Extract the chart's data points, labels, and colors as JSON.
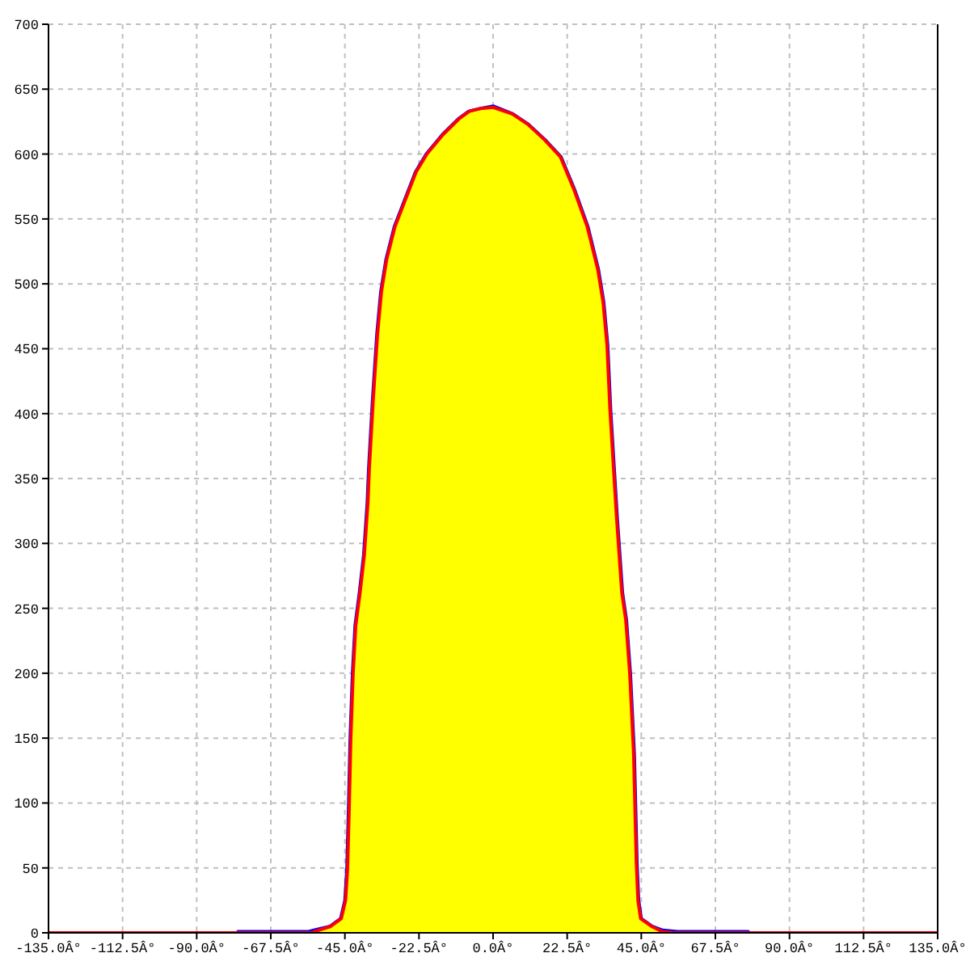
{
  "chart_data": {
    "type": "line",
    "xlim": [
      -135,
      135
    ],
    "xticks": [
      {
        "value": -135,
        "label": "-135.0Â°"
      },
      {
        "value": -112.5,
        "label": "-112.5Â°"
      },
      {
        "value": -90,
        "label": "-90.0Â°"
      },
      {
        "value": -67.5,
        "label": "-67.5Â°"
      },
      {
        "value": -45,
        "label": "-45.0Â°"
      },
      {
        "value": -22.5,
        "label": "-22.5Â°"
      },
      {
        "value": 0,
        "label": "0.0Â°"
      },
      {
        "value": 22.5,
        "label": "22.5Â°"
      },
      {
        "value": 45,
        "label": "45.0Â°"
      },
      {
        "value": 67.5,
        "label": "67.5Â°"
      },
      {
        "value": 90,
        "label": "90.0Â°"
      },
      {
        "value": 112.5,
        "label": "112.5Â°"
      },
      {
        "value": 135,
        "label": "135.0Â°"
      }
    ],
    "ylim": [
      0,
      700
    ],
    "yticks": [
      0,
      50,
      100,
      150,
      200,
      250,
      300,
      350,
      400,
      450,
      500,
      550,
      600,
      650,
      700
    ],
    "grid": true,
    "series": [
      {
        "type": "area",
        "color": "#ffff00",
        "x": [
          -55,
          -54.2,
          -49.3,
          -46.1,
          -44.8,
          -44.2,
          -43.7,
          -43.2,
          -42.5,
          -41.7,
          -40.4,
          -39.1,
          -38.0,
          -37.6,
          -36.4,
          -35.1,
          -33.9,
          -32.3,
          -29.8,
          -26.6,
          -23.4,
          -20.1,
          -15.2,
          -10.4,
          -7.2,
          -3.9,
          0,
          5.8,
          10.5,
          15.6,
          20.4,
          24.5,
          28.6,
          31.8,
          33.4,
          34.6,
          35.5,
          36.7,
          37.5,
          39.1,
          40.3,
          41.5,
          42.7,
          43.5,
          44.0,
          44.8,
          48.1,
          51.3,
          55
        ],
        "values": [
          0,
          1,
          5,
          11,
          25,
          49,
          96,
          150,
          200,
          237,
          262,
          291,
          332,
          357,
          411,
          461,
          494,
          519,
          544,
          565,
          586,
          600,
          615,
          627,
          633,
          635,
          636,
          631,
          623,
          611,
          598,
          573,
          544,
          511,
          486,
          453,
          403,
          353,
          320,
          262,
          241,
          200,
          137,
          54,
          25,
          11,
          5,
          1,
          0
        ]
      },
      {
        "color": "#0000ff",
        "x": [
          -77.5,
          -56,
          -54.4,
          -49.5,
          -46.3,
          -45.0,
          -44.4,
          -43.9,
          -43.4,
          -42.7,
          -41.9,
          -40.6,
          -39.3,
          -38.2,
          -37.8,
          -36.6,
          -35.3,
          -34.1,
          -32.5,
          -30.0,
          -26.8,
          -23.6,
          -20.3,
          -15.4,
          -10.6,
          -7.4,
          -4.1,
          0,
          6.0,
          10.7,
          15.8,
          20.6,
          24.7,
          28.8,
          32.0,
          33.6,
          34.8,
          35.7,
          36.9,
          37.7,
          39.3,
          40.5,
          41.7,
          42.9,
          43.7,
          44.2,
          45.0,
          48.3,
          51.5,
          56,
          77.5
        ],
        "values": [
          1,
          1,
          2,
          5,
          11,
          25,
          49,
          96,
          150,
          200,
          237,
          262,
          291,
          332,
          357,
          411,
          461,
          494,
          519,
          544,
          565,
          586,
          600,
          615,
          627,
          633,
          635,
          637,
          631,
          623,
          611,
          598,
          573,
          544,
          511,
          486,
          453,
          403,
          353,
          320,
          262,
          241,
          200,
          137,
          54,
          25,
          11,
          5,
          2,
          1,
          1
        ]
      },
      {
        "color": "#ff0000",
        "x": [
          -135,
          -55,
          -54.2,
          -49.3,
          -46.1,
          -44.8,
          -44.2,
          -43.7,
          -43.2,
          -42.5,
          -41.7,
          -40.4,
          -39.1,
          -38.0,
          -37.6,
          -36.4,
          -35.1,
          -33.9,
          -32.3,
          -29.8,
          -26.6,
          -23.4,
          -20.1,
          -15.2,
          -10.4,
          -7.2,
          -3.9,
          0,
          5.8,
          10.5,
          15.6,
          20.4,
          24.5,
          28.6,
          31.8,
          33.4,
          34.6,
          35.5,
          36.7,
          37.5,
          39.1,
          40.3,
          41.5,
          42.7,
          43.5,
          44.0,
          44.8,
          48.1,
          51.3,
          55,
          135
        ],
        "values": [
          0,
          0,
          1,
          5,
          11,
          25,
          49,
          96,
          150,
          200,
          237,
          262,
          291,
          332,
          357,
          411,
          461,
          494,
          519,
          544,
          565,
          586,
          600,
          615,
          627,
          633,
          635,
          636,
          631,
          623,
          611,
          598,
          573,
          544,
          511,
          486,
          453,
          403,
          353,
          320,
          262,
          241,
          200,
          137,
          54,
          25,
          11,
          5,
          1,
          0,
          0
        ]
      }
    ]
  }
}
